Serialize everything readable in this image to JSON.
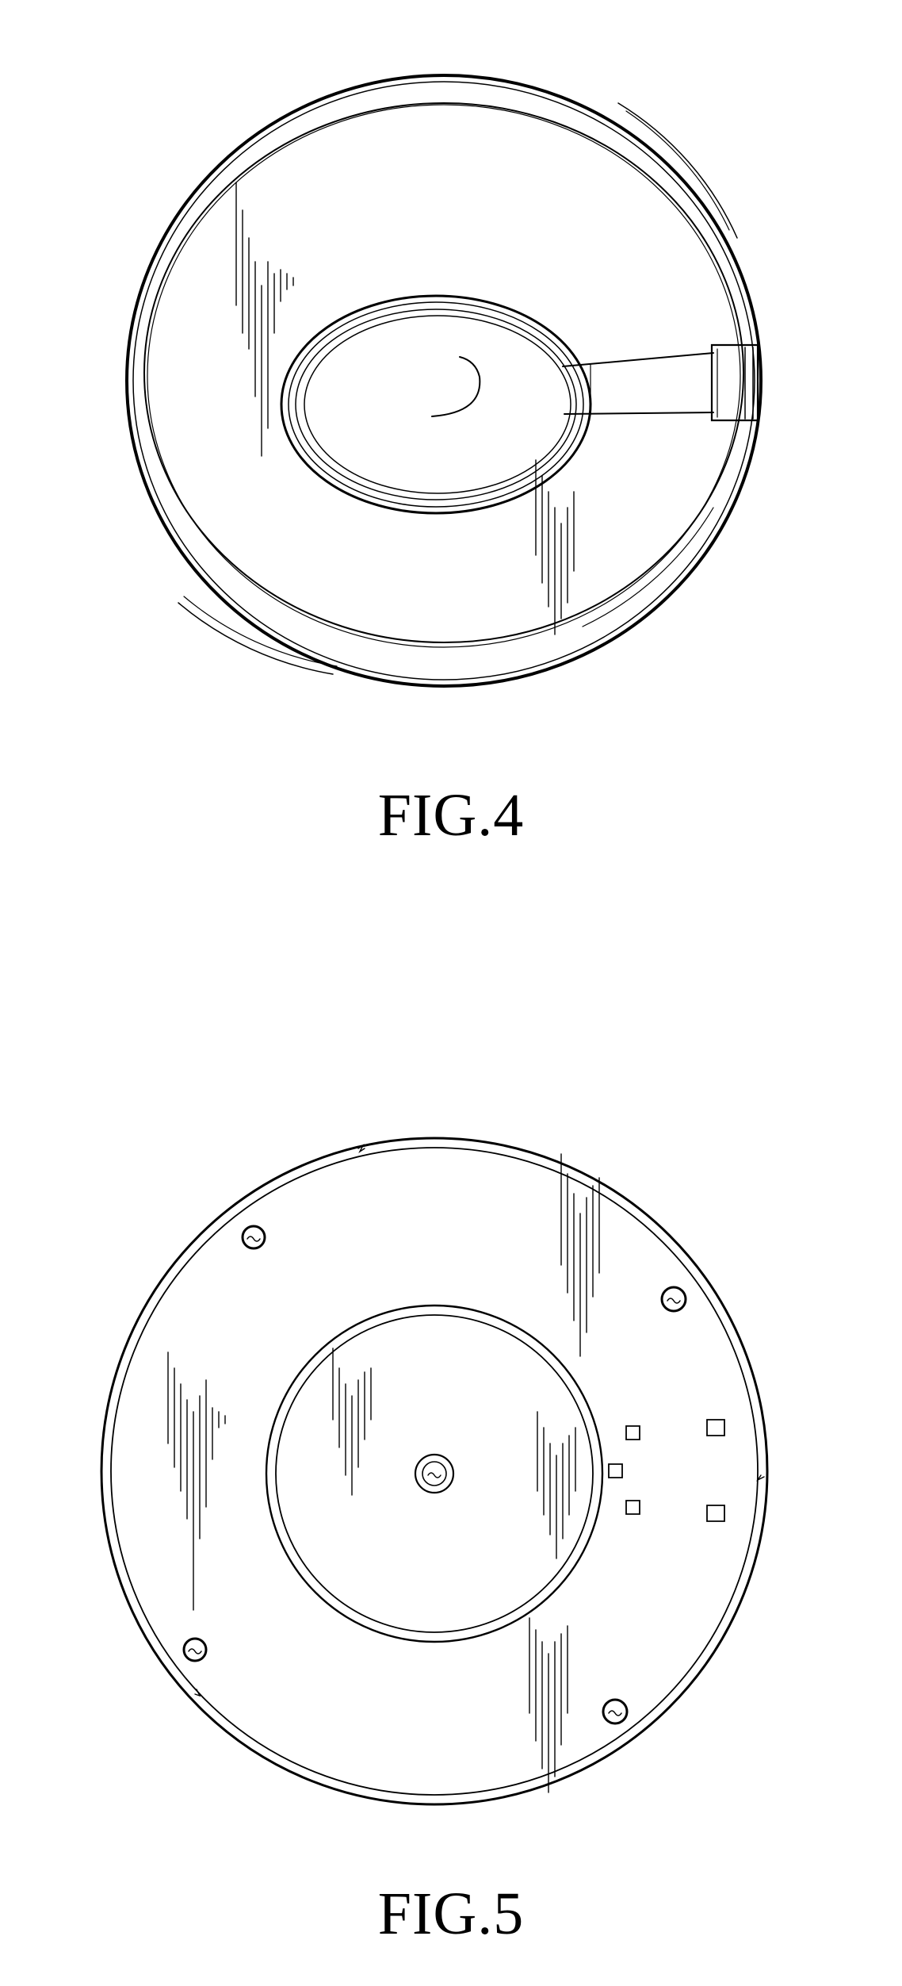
{
  "figures": [
    {
      "label": "FIG.4"
    },
    {
      "label": "FIG.5"
    }
  ],
  "colors": {
    "ink": "#000000",
    "paper": "#ffffff"
  }
}
